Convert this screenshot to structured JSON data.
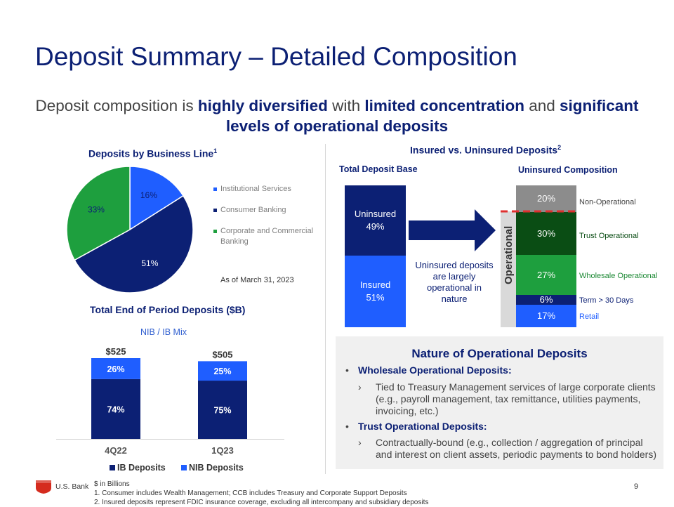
{
  "title": "Deposit Summary – Detailed Composition",
  "subtitle": {
    "p1": "Deposit composition is ",
    "b1": "highly diversified",
    "p2": " with ",
    "b2": "limited concentration",
    "p3": " and ",
    "b3": "significant levels of operational deposits"
  },
  "left": {
    "pie_title": "Deposits by Business Line",
    "pie_title_sup": "1",
    "as_of": "As of March 31, 2023",
    "bar_title": "Total End of Period Deposits ($B)",
    "bar_subtitle": "NIB / IB Mix"
  },
  "right": {
    "title": "Insured vs. Uninsured Deposits",
    "title_sup": "2",
    "total_base_label": "Total Deposit Base",
    "uninsured_comp_label": "Uninsured Composition",
    "uninsured_label": "Uninsured",
    "uninsured_pct": "49%",
    "insured_label": "Insured",
    "insured_pct": "51%",
    "arrow_text": "Uninsured deposits are largely operational in nature",
    "operational_label": "Operational",
    "composition": [
      {
        "pct": "20%",
        "label": "Non-Operational",
        "value": 20,
        "color": "#8c8c8c",
        "label_color": "#444444"
      },
      {
        "pct": "30%",
        "label": "Trust Operational",
        "value": 30,
        "color": "#0a4d14",
        "label_color": "#0a4d14"
      },
      {
        "pct": "27%",
        "label": "Wholesale Operational",
        "value": 27,
        "color": "#1e9f3e",
        "label_color": "#1e8a36"
      },
      {
        "pct": "6%",
        "label": "Term > 30 Days",
        "value": 6,
        "color": "#0c2074",
        "label_color": "#0c2074"
      },
      {
        "pct": "17%",
        "label": "Retail",
        "value": 17,
        "color": "#1f5eff",
        "label_color": "#1f5eff"
      }
    ]
  },
  "nature": {
    "title": "Nature of Operational Deposits",
    "b1_head": "Wholesale Operational Deposits:",
    "b1_sub": "Tied to Treasury Management services of large corporate clients (e.g., payroll management, tax remittance, utilities payments, invoicing, etc.)",
    "b2_head": "Trust Operational Deposits:",
    "b2_sub": "Contractually-bound (e.g., collection / aggregation of principal and interest on client assets, periodic payments to bond holders)",
    "bullet": "•",
    "chevron": "›"
  },
  "footer": {
    "line1": "$ in Billions",
    "line2": "1. Consumer includes Wealth Management; CCB includes Treasury and Corporate Support Deposits",
    "line3": "2. Insured deposits represent FDIC insurance coverage, excluding all intercompany and subsidiary deposits",
    "logo_text": "U.S. Bank",
    "page": "9"
  },
  "chart_data": [
    {
      "type": "pie",
      "title": "Deposits by Business Line",
      "categories": [
        "Institutional Services",
        "Consumer Banking",
        "Corporate and Commercial Banking"
      ],
      "values": [
        16,
        51,
        33
      ],
      "labels": [
        "16%",
        "51%",
        "33%"
      ],
      "colors": [
        "#1f5eff",
        "#0c2074",
        "#1e9f3e"
      ],
      "legend": "right"
    },
    {
      "type": "bar",
      "title": "Total End of Period Deposits ($B)",
      "subtitle": "NIB / IB Mix",
      "categories": [
        "4Q22",
        "1Q23"
      ],
      "totals": [
        525,
        505
      ],
      "total_labels": [
        "$525",
        "$505"
      ],
      "series": [
        {
          "name": "IB Deposits",
          "values": [
            74,
            75
          ],
          "labels": [
            "74%",
            "75%"
          ],
          "color": "#0c2074"
        },
        {
          "name": "NIB Deposits",
          "values": [
            26,
            25
          ],
          "labels": [
            "26%",
            "25%"
          ],
          "color": "#1f5eff"
        }
      ],
      "ylim": [
        0,
        525
      ],
      "legend": "bottom"
    }
  ]
}
